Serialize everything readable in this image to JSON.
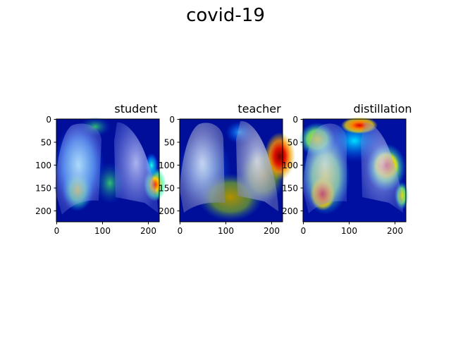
{
  "figure": {
    "title": "covid-19"
  },
  "panels": [
    {
      "id": "student",
      "title": "student",
      "xticks": [
        "0",
        "100",
        "200"
      ],
      "yticks": [
        "0",
        "50",
        "100",
        "150",
        "200"
      ]
    },
    {
      "id": "teacher",
      "title": "teacher",
      "xticks": [
        "0",
        "100",
        "200"
      ],
      "yticks": [
        "0",
        "50",
        "100",
        "150",
        "200"
      ]
    },
    {
      "id": "distillation",
      "title": "distillation",
      "xticks": [
        "0",
        "100",
        "200"
      ],
      "yticks": [
        "0",
        "50",
        "100",
        "150",
        "200"
      ]
    }
  ],
  "chart_data": {
    "type": "heatmap",
    "xlim": [
      0,
      224
    ],
    "ylim": [
      224,
      0
    ],
    "colormap": "jet",
    "colors": {
      "low": "#00007f",
      "mid": "#7fff7f",
      "high": "#7f0000"
    }
  }
}
